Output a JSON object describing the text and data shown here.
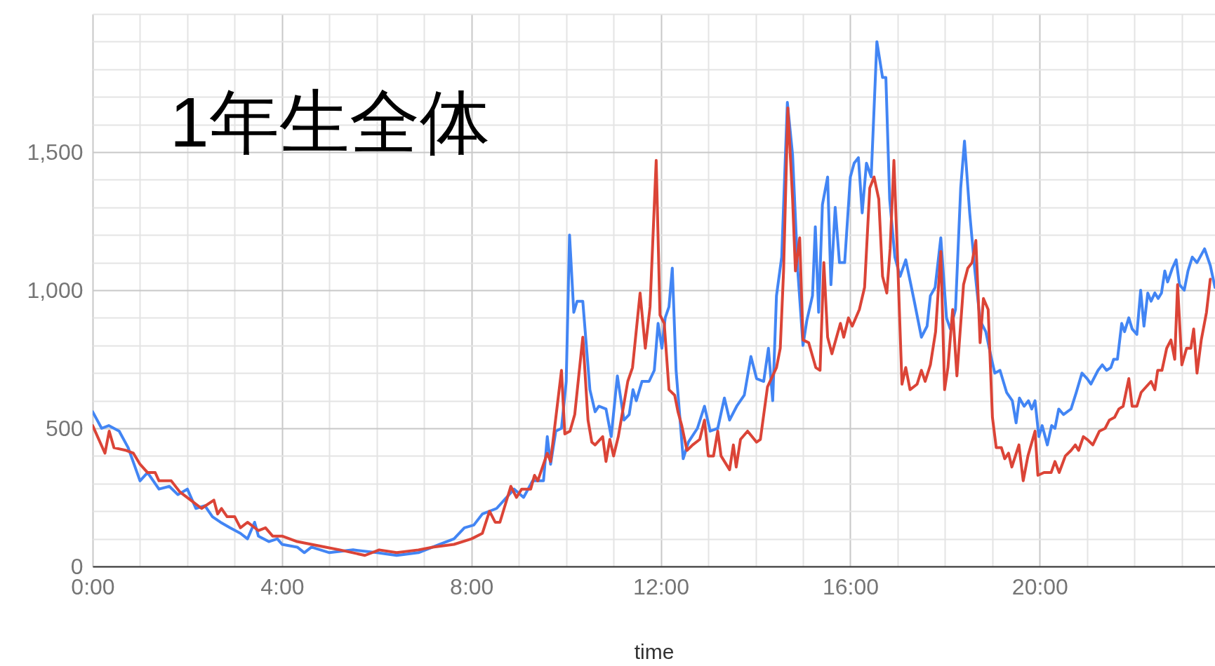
{
  "chart_data": {
    "type": "line",
    "title": "1年生全体",
    "xlabel": "time",
    "xlim": [
      0,
      23.7
    ],
    "xticks": [
      {
        "value": 0,
        "label": "0:00"
      },
      {
        "value": 1,
        "label": null
      },
      {
        "value": 2,
        "label": null
      },
      {
        "value": 3,
        "label": null
      },
      {
        "value": 4,
        "label": "4:00"
      },
      {
        "value": 5,
        "label": null
      },
      {
        "value": 6,
        "label": null
      },
      {
        "value": 7,
        "label": null
      },
      {
        "value": 8,
        "label": "8:00"
      },
      {
        "value": 9,
        "label": null
      },
      {
        "value": 10,
        "label": null
      },
      {
        "value": 11,
        "label": null
      },
      {
        "value": 12,
        "label": "12:00"
      },
      {
        "value": 13,
        "label": null
      },
      {
        "value": 14,
        "label": null
      },
      {
        "value": 15,
        "label": null
      },
      {
        "value": 16,
        "label": "16:00"
      },
      {
        "value": 17,
        "label": null
      },
      {
        "value": 18,
        "label": null
      },
      {
        "value": 19,
        "label": null
      },
      {
        "value": 20,
        "label": "20:00"
      },
      {
        "value": 21,
        "label": null
      },
      {
        "value": 22,
        "label": null
      },
      {
        "value": 23,
        "label": null
      }
    ],
    "ylim": [
      0,
      2000
    ],
    "yticks": [
      0,
      {
        "value": 100,
        "label": null
      },
      {
        "value": 200,
        "label": null
      },
      {
        "value": 300,
        "label": null
      },
      {
        "value": 400,
        "label": null
      },
      500,
      {
        "value": 600,
        "label": null
      },
      {
        "value": 700,
        "label": null
      },
      {
        "value": 800,
        "label": null
      },
      {
        "value": 900,
        "label": null
      },
      {
        "value": 1000,
        "label": "1,000"
      },
      {
        "value": 1100,
        "label": null
      },
      {
        "value": 1200,
        "label": null
      },
      {
        "value": 1300,
        "label": null
      },
      {
        "value": 1400,
        "label": null
      },
      {
        "value": 1500,
        "label": "1,500"
      },
      {
        "value": 1600,
        "label": null
      },
      {
        "value": 1700,
        "label": null
      },
      {
        "value": 1800,
        "label": null
      },
      {
        "value": 1900,
        "label": null
      },
      {
        "value": 2000,
        "label": null
      }
    ],
    "grid": true,
    "series": [
      {
        "color": "#4285f4",
        "x": [
          0,
          0.19,
          0.34,
          0.56,
          0.75,
          1.0,
          1.16,
          1.4,
          1.62,
          1.8,
          2.0,
          2.18,
          2.37,
          2.53,
          2.7,
          2.9,
          3.12,
          3.27,
          3.42,
          3.5,
          3.72,
          3.9,
          4.0,
          4.32,
          4.47,
          4.62,
          5.0,
          5.5,
          6.0,
          6.42,
          6.88,
          7.33,
          7.63,
          7.85,
          8.05,
          8.23,
          8.53,
          8.9,
          9.1,
          9.29,
          9.52,
          9.6,
          9.67,
          9.78,
          9.9,
          10.0,
          10.07,
          10.16,
          10.23,
          10.35,
          10.5,
          10.61,
          10.69,
          10.84,
          10.95,
          11.08,
          11.22,
          11.33,
          11.41,
          11.48,
          11.6,
          11.75,
          11.86,
          11.94,
          12.02,
          12.09,
          12.17,
          12.24,
          12.32,
          12.47,
          12.58,
          12.77,
          12.92,
          13.04,
          13.2,
          13.34,
          13.45,
          13.6,
          13.76,
          13.9,
          14.02,
          14.17,
          14.27,
          14.36,
          14.44,
          14.55,
          14.67,
          14.78,
          14.89,
          15.0,
          15.08,
          15.2,
          15.26,
          15.33,
          15.41,
          15.52,
          15.59,
          15.68,
          15.77,
          15.88,
          16.0,
          16.08,
          16.17,
          16.25,
          16.34,
          16.44,
          16.56,
          16.68,
          16.75,
          16.83,
          16.94,
          17.05,
          17.17,
          17.35,
          17.5,
          17.62,
          17.69,
          17.79,
          17.91,
          18.03,
          18.11,
          18.22,
          18.33,
          18.41,
          18.52,
          18.63,
          18.74,
          18.86,
          18.97,
          19.05,
          19.16,
          19.3,
          19.42,
          19.5,
          19.57,
          19.67,
          19.76,
          19.83,
          19.9,
          19.98,
          20.05,
          20.16,
          20.25,
          20.32,
          20.4,
          20.5,
          20.66,
          20.77,
          20.89,
          21.0,
          21.08,
          21.23,
          21.32,
          21.41,
          21.5,
          21.56,
          21.64,
          21.73,
          21.79,
          21.88,
          21.95,
          22.05,
          22.13,
          22.2,
          22.28,
          22.35,
          22.43,
          22.5,
          22.57,
          22.64,
          22.7,
          22.8,
          22.88,
          22.95,
          23.05,
          23.13,
          23.22,
          23.32,
          23.48,
          23.6,
          23.7
        ],
        "values": [
          560,
          500,
          510,
          490,
          430,
          310,
          340,
          280,
          290,
          260,
          280,
          210,
          220,
          180,
          160,
          140,
          120,
          100,
          160,
          110,
          90,
          100,
          80,
          70,
          50,
          70,
          50,
          60,
          50,
          40,
          50,
          80,
          100,
          140,
          150,
          190,
          210,
          280,
          250,
          310,
          310,
          470,
          370,
          490,
          500,
          670,
          1200,
          920,
          960,
          960,
          640,
          560,
          580,
          570,
          470,
          690,
          530,
          550,
          640,
          600,
          670,
          670,
          710,
          880,
          790,
          900,
          940,
          1080,
          710,
          390,
          450,
          500,
          580,
          490,
          500,
          610,
          530,
          580,
          620,
          760,
          680,
          670,
          790,
          600,
          980,
          1120,
          1680,
          1490,
          1070,
          800,
          890,
          980,
          1230,
          920,
          1310,
          1410,
          1020,
          1300,
          1100,
          1100,
          1410,
          1460,
          1480,
          1280,
          1460,
          1410,
          1900,
          1770,
          1770,
          1330,
          1120,
          1050,
          1110,
          960,
          830,
          870,
          980,
          1010,
          1190,
          900,
          860,
          930,
          1370,
          1540,
          1280,
          1070,
          890,
          850,
          760,
          700,
          710,
          630,
          600,
          520,
          610,
          580,
          600,
          570,
          600,
          470,
          510,
          440,
          510,
          500,
          570,
          550,
          570,
          630,
          700,
          680,
          660,
          710,
          730,
          710,
          720,
          750,
          750,
          880,
          850,
          900,
          860,
          840,
          1000,
          870,
          990,
          960,
          990,
          970,
          990,
          1070,
          1030,
          1080,
          1110,
          1020,
          1000,
          1070,
          1120,
          1100,
          1150,
          1090,
          1010
        ]
      },
      {
        "color": "#db4437",
        "x": [
          0,
          0.26,
          0.35,
          0.45,
          0.71,
          0.86,
          1.0,
          1.16,
          1.32,
          1.4,
          1.66,
          1.84,
          2.07,
          2.3,
          2.56,
          2.64,
          2.72,
          2.84,
          3.0,
          3.12,
          3.27,
          3.5,
          3.65,
          3.8,
          4.0,
          4.32,
          4.62,
          4.92,
          5.22,
          5.75,
          6.05,
          6.42,
          6.88,
          7.18,
          7.63,
          8.0,
          8.23,
          8.38,
          8.5,
          8.6,
          8.83,
          8.95,
          9.06,
          9.25,
          9.33,
          9.4,
          9.6,
          9.67,
          9.9,
          9.97,
          10.08,
          10.18,
          10.35,
          10.46,
          10.54,
          10.61,
          10.77,
          10.84,
          10.92,
          11.0,
          11.1,
          11.3,
          11.4,
          11.56,
          11.67,
          11.77,
          11.9,
          11.98,
          12.07,
          12.17,
          12.29,
          12.36,
          12.44,
          12.55,
          12.67,
          12.82,
          12.92,
          13.0,
          13.11,
          13.2,
          13.27,
          13.45,
          13.53,
          13.59,
          13.68,
          13.83,
          14.02,
          14.1,
          14.25,
          14.44,
          14.52,
          14.59,
          14.68,
          14.78,
          14.84,
          14.93,
          15.0,
          15.12,
          15.27,
          15.36,
          15.44,
          15.52,
          15.61,
          15.79,
          15.86,
          15.96,
          16.04,
          16.19,
          16.3,
          16.41,
          16.5,
          16.6,
          16.68,
          16.77,
          16.84,
          16.92,
          17.0,
          17.09,
          17.17,
          17.26,
          17.41,
          17.5,
          17.58,
          17.69,
          17.8,
          17.91,
          17.99,
          18.06,
          18.16,
          18.25,
          18.39,
          18.48,
          18.57,
          18.65,
          18.74,
          18.81,
          18.91,
          19.0,
          19.08,
          19.19,
          19.26,
          19.34,
          19.41,
          19.56,
          19.65,
          19.75,
          19.9,
          19.96,
          20.09,
          20.24,
          20.32,
          20.41,
          20.54,
          20.66,
          20.75,
          20.82,
          20.92,
          21.0,
          21.12,
          21.26,
          21.38,
          21.47,
          21.58,
          21.67,
          21.76,
          21.88,
          21.95,
          22.05,
          22.14,
          22.35,
          22.43,
          22.49,
          22.58,
          22.68,
          22.77,
          22.85,
          22.91,
          23.0,
          23.1,
          23.19,
          23.25,
          23.32,
          23.41,
          23.52,
          23.6
        ],
        "values": [
          510,
          410,
          490,
          430,
          420,
          410,
          370,
          340,
          340,
          310,
          310,
          270,
          240,
          210,
          240,
          190,
          210,
          180,
          180,
          140,
          160,
          130,
          140,
          110,
          110,
          90,
          80,
          70,
          60,
          40,
          60,
          50,
          60,
          70,
          80,
          100,
          120,
          200,
          160,
          160,
          290,
          250,
          280,
          280,
          330,
          310,
          410,
          380,
          710,
          480,
          490,
          550,
          830,
          530,
          450,
          440,
          470,
          380,
          460,
          400,
          470,
          670,
          720,
          990,
          790,
          940,
          1470,
          910,
          880,
          640,
          620,
          560,
          510,
          420,
          440,
          460,
          530,
          400,
          400,
          490,
          400,
          350,
          440,
          360,
          460,
          490,
          450,
          460,
          650,
          720,
          790,
          1070,
          1660,
          1330,
          1070,
          1190,
          820,
          810,
          720,
          710,
          1100,
          830,
          770,
          880,
          830,
          900,
          870,
          930,
          1010,
          1370,
          1410,
          1330,
          1050,
          990,
          1150,
          1470,
          1100,
          660,
          720,
          640,
          660,
          710,
          670,
          730,
          850,
          1140,
          640,
          720,
          930,
          690,
          1020,
          1080,
          1100,
          1180,
          810,
          970,
          930,
          540,
          430,
          430,
          390,
          410,
          360,
          440,
          310,
          400,
          490,
          330,
          340,
          340,
          380,
          340,
          400,
          420,
          440,
          420,
          470,
          460,
          440,
          490,
          500,
          530,
          540,
          570,
          580,
          680,
          580,
          580,
          630,
          670,
          640,
          710,
          710,
          790,
          820,
          750,
          1020,
          730,
          790,
          790,
          860,
          700,
          820,
          920,
          1040
        ]
      }
    ]
  }
}
